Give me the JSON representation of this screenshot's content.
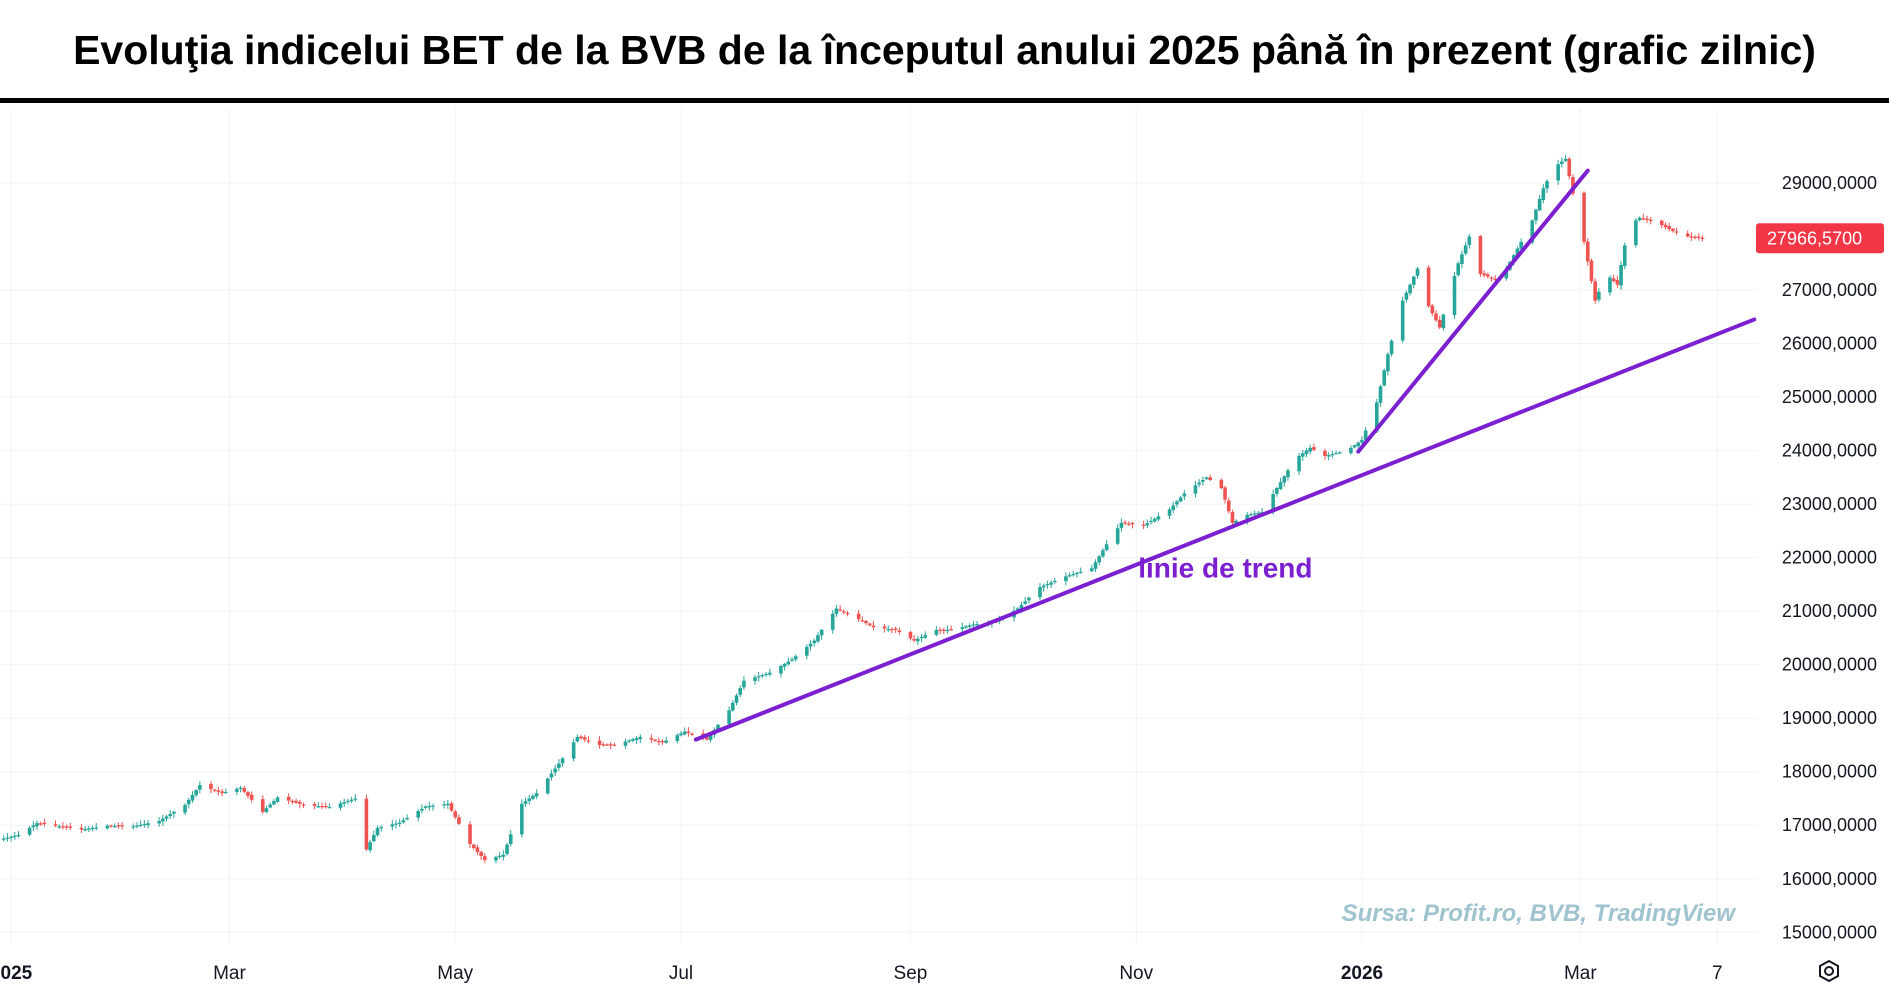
{
  "title": "Evoluţia indicelui BET de la BVB de la începutul anului 2025 până în prezent (grafic zilnic)",
  "chart_data": {
    "type": "candlestick",
    "title": "Evoluţia indicelui BET de la BVB de la începutul anului 2025 până în prezent (grafic zilnic)",
    "xlabel": "",
    "ylabel": "",
    "ylim": [
      14800,
      30400
    ],
    "xlim": [
      "2024-12-29",
      "2026-04-18"
    ],
    "y_ticks": [
      "15000,0000",
      "16000,0000",
      "17000,0000",
      "18000,0000",
      "19000,0000",
      "20000,0000",
      "21000,0000",
      "22000,0000",
      "23000,0000",
      "24000,0000",
      "25000,0000",
      "26000,0000",
      "27000,0000",
      "29000,0000"
    ],
    "y_tick_values": [
      15000,
      16000,
      17000,
      18000,
      19000,
      20000,
      21000,
      22000,
      23000,
      24000,
      25000,
      26000,
      27000,
      29000
    ],
    "x_ticks": [
      {
        "label": "2025",
        "date": "2025-01-01",
        "bold": true
      },
      {
        "label": "Mar",
        "date": "2025-03-01",
        "bold": false
      },
      {
        "label": "May",
        "date": "2025-05-01",
        "bold": false
      },
      {
        "label": "Jul",
        "date": "2025-07-01",
        "bold": false
      },
      {
        "label": "Sep",
        "date": "2025-09-01",
        "bold": false
      },
      {
        "label": "Nov",
        "date": "2025-11-01",
        "bold": false
      },
      {
        "label": "2026",
        "date": "2026-01-01",
        "bold": true
      },
      {
        "label": "Mar",
        "date": "2026-03-01",
        "bold": false
      },
      {
        "label": "7",
        "date": "2026-04-07",
        "bold": false
      }
    ],
    "last_price": "27966,5700",
    "last_price_value": 27966.57,
    "grid": true,
    "colors": {
      "up": "#26a69a",
      "down": "#ef5350",
      "trendline": "#7b1fd0",
      "last_badge": "#f23645",
      "grid": "#f0f3fa",
      "source": "#9fc3cf"
    },
    "series": [
      {
        "name": "BET",
        "close_points": [
          [
            "2024-12-30",
            16750
          ],
          [
            "2025-01-03",
            16820
          ],
          [
            "2025-01-08",
            17040
          ],
          [
            "2025-01-14",
            16980
          ],
          [
            "2025-01-20",
            16920
          ],
          [
            "2025-01-27",
            16990
          ],
          [
            "2025-02-03",
            16980
          ],
          [
            "2025-02-10",
            17080
          ],
          [
            "2025-02-17",
            17380
          ],
          [
            "2025-02-21",
            17750
          ],
          [
            "2025-02-27",
            17600
          ],
          [
            "2025-03-04",
            17700
          ],
          [
            "2025-03-10",
            17250
          ],
          [
            "2025-03-14",
            17520
          ],
          [
            "2025-03-21",
            17380
          ],
          [
            "2025-03-28",
            17340
          ],
          [
            "2025-04-04",
            17500
          ],
          [
            "2025-04-07",
            16550
          ],
          [
            "2025-04-10",
            16950
          ],
          [
            "2025-04-16",
            17050
          ],
          [
            "2025-04-23",
            17350
          ],
          [
            "2025-04-29",
            17400
          ],
          [
            "2025-05-05",
            16650
          ],
          [
            "2025-05-09",
            16350
          ],
          [
            "2025-05-14",
            16450
          ],
          [
            "2025-05-19",
            17400
          ],
          [
            "2025-05-23",
            17600
          ],
          [
            "2025-05-29",
            18150
          ],
          [
            "2025-06-03",
            18650
          ],
          [
            "2025-06-09",
            18500
          ],
          [
            "2025-06-13",
            18500
          ],
          [
            "2025-06-20",
            18650
          ],
          [
            "2025-06-26",
            18550
          ],
          [
            "2025-07-02",
            18750
          ],
          [
            "2025-07-08",
            18600
          ],
          [
            "2025-07-14",
            19150
          ],
          [
            "2025-07-18",
            19700
          ],
          [
            "2025-07-25",
            19850
          ],
          [
            "2025-07-31",
            20100
          ],
          [
            "2025-08-06",
            20450
          ],
          [
            "2025-08-12",
            21050
          ],
          [
            "2025-08-18",
            20850
          ],
          [
            "2025-08-22",
            20700
          ],
          [
            "2025-08-28",
            20650
          ],
          [
            "2025-09-02",
            20450
          ],
          [
            "2025-09-08",
            20650
          ],
          [
            "2025-09-12",
            20650
          ],
          [
            "2025-09-18",
            20750
          ],
          [
            "2025-09-24",
            20800
          ],
          [
            "2025-09-30",
            21050
          ],
          [
            "2025-10-06",
            21450
          ],
          [
            "2025-10-13",
            21650
          ],
          [
            "2025-10-20",
            21800
          ],
          [
            "2025-10-24",
            22250
          ],
          [
            "2025-10-28",
            22650
          ],
          [
            "2025-11-03",
            22600
          ],
          [
            "2025-11-10",
            22900
          ],
          [
            "2025-11-14",
            23200
          ],
          [
            "2025-11-20",
            23500
          ],
          [
            "2025-11-24",
            23300
          ],
          [
            "2025-11-27",
            22650
          ],
          [
            "2025-12-01",
            22800
          ],
          [
            "2025-12-05",
            22850
          ],
          [
            "2025-12-09",
            23300
          ],
          [
            "2025-12-14",
            23850
          ],
          [
            "2025-12-18",
            24050
          ],
          [
            "2025-12-22",
            23900
          ],
          [
            "2025-12-28",
            24000
          ],
          [
            "2026-01-01",
            24200
          ],
          [
            "2026-01-05",
            24900
          ],
          [
            "2026-01-08",
            25800
          ],
          [
            "2026-01-12",
            26800
          ],
          [
            "2026-01-16",
            27400
          ],
          [
            "2026-01-19",
            26700
          ],
          [
            "2026-01-22",
            26300
          ],
          [
            "2026-01-27",
            27500
          ],
          [
            "2026-01-30",
            28000
          ],
          [
            "2026-02-02",
            27300
          ],
          [
            "2026-02-06",
            27200
          ],
          [
            "2026-02-09",
            27400
          ],
          [
            "2026-02-13",
            27900
          ],
          [
            "2026-02-16",
            28300
          ],
          [
            "2026-02-19",
            28900
          ],
          [
            "2026-02-22",
            29300
          ],
          [
            "2026-02-25",
            29450
          ],
          [
            "2026-02-27",
            28800
          ],
          [
            "2026-03-02",
            27900
          ],
          [
            "2026-03-05",
            26800
          ],
          [
            "2026-03-08",
            27300
          ],
          [
            "2026-03-11",
            27100
          ],
          [
            "2026-03-14",
            28200
          ],
          [
            "2026-03-17",
            28350
          ],
          [
            "2026-03-22",
            28250
          ],
          [
            "2026-03-26",
            28100
          ],
          [
            "2026-03-30",
            28000
          ],
          [
            "2026-04-03",
            27966.57
          ]
        ]
      }
    ],
    "trendlines": [
      {
        "start": [
          "2025-07-05",
          18600
        ],
        "end": [
          "2026-04-17",
          26450
        ]
      },
      {
        "start": [
          "2025-12-31",
          23980
        ],
        "end": [
          "2026-03-03",
          29230
        ]
      }
    ],
    "annotations": [
      {
        "text": "linie de trend",
        "date": "2025-11-01",
        "value": 21630
      }
    ],
    "source_note": "Sursa: Profit.ro, BVB, TradingView"
  }
}
